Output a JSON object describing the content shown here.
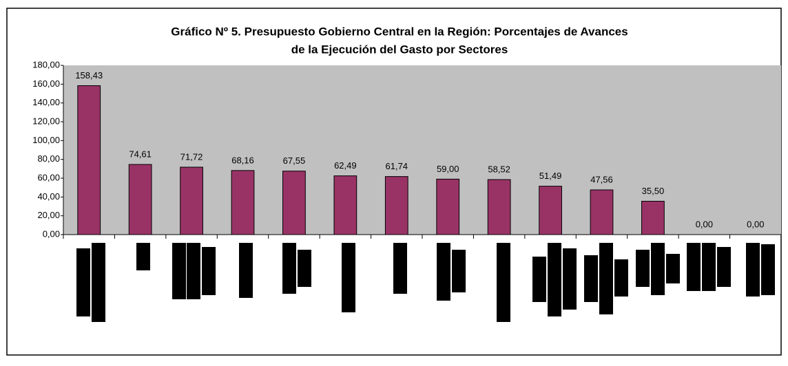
{
  "chart_data": {
    "type": "bar",
    "title": "Gráfico Nº 5. Presupuesto Gobierno Central en la Región: Porcentajes de Avances",
    "subtitle": "de la Ejecución del Gasto por Sectores",
    "categories": [
      null,
      null,
      null,
      null,
      null,
      null,
      null,
      null,
      null,
      null,
      null,
      null,
      null,
      null
    ],
    "values": [
      158.43,
      74.61,
      71.72,
      68.16,
      67.55,
      62.49,
      61.74,
      59.0,
      58.52,
      51.49,
      47.56,
      35.5,
      0.0,
      0.0
    ],
    "value_labels": [
      "158,43",
      "74,61",
      "71,72",
      "68,16",
      "67,55",
      "62,49",
      "61,74",
      "59,00",
      "58,52",
      "51,49",
      "47,56",
      "35,50",
      "0,00",
      "0,00"
    ],
    "color": "#993366",
    "ylim": [
      0,
      180
    ],
    "yticks": [
      {
        "value": 0,
        "label": "0,00"
      },
      {
        "value": 20,
        "label": "20,00"
      },
      {
        "value": 40,
        "label": "40,00"
      },
      {
        "value": 60,
        "label": "60,00"
      },
      {
        "value": 80,
        "label": "80,00"
      },
      {
        "value": 100,
        "label": "100,00"
      },
      {
        "value": 120,
        "label": "120,00"
      },
      {
        "value": 140,
        "label": "140,00"
      },
      {
        "value": 160,
        "label": "160,00"
      },
      {
        "value": 180,
        "label": "180,00"
      }
    ],
    "grid": false
  }
}
